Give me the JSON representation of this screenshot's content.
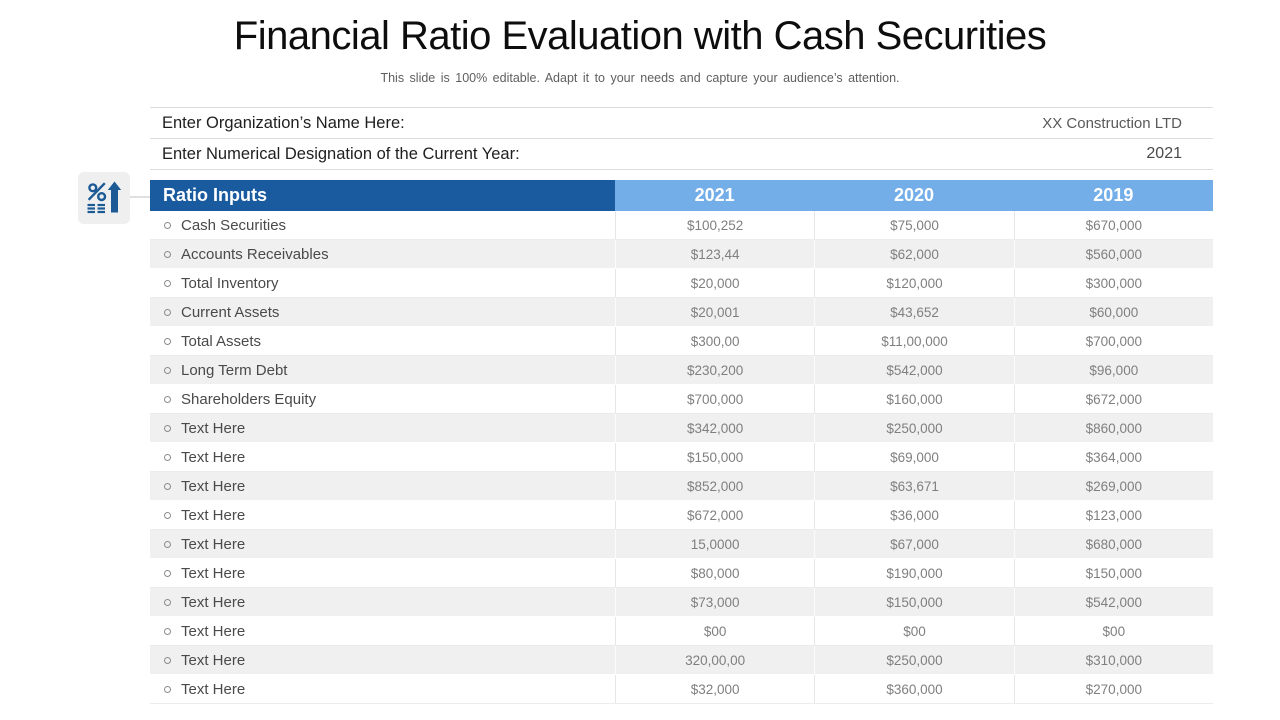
{
  "slide": {
    "title": "Financial Ratio Evaluation with Cash Securities",
    "subtitle": "This slide is 100% editable. Adapt it to your needs and capture your audience’s attention."
  },
  "info": {
    "rows": [
      {
        "label": "Enter Organization’s Name Here:",
        "value": "XX Construction LTD"
      },
      {
        "label": "Enter Numerical Designation of the Current Year:",
        "value": "2021"
      }
    ]
  },
  "table": {
    "header_label": "Ratio Inputs",
    "years": [
      "2021",
      "2020",
      "2019"
    ],
    "rows": [
      {
        "label": "Cash Securities",
        "values": [
          "$100,252",
          "$75,000",
          "$670,000"
        ]
      },
      {
        "label": "Accounts Receivables",
        "values": [
          "$123,44",
          "$62,000",
          "$560,000"
        ]
      },
      {
        "label": "Total Inventory",
        "values": [
          "$20,000",
          "$120,000",
          "$300,000"
        ]
      },
      {
        "label": "Current Assets",
        "values": [
          "$20,001",
          "$43,652",
          "$60,000"
        ]
      },
      {
        "label": "Total Assets",
        "values": [
          "$300,00",
          "$11,00,000",
          "$700,000"
        ]
      },
      {
        "label": "Long Term Debt",
        "values": [
          "$230,200",
          "$542,000",
          "$96,000"
        ]
      },
      {
        "label": "Shareholders Equity",
        "values": [
          "$700,000",
          "$160,000",
          "$672,000"
        ]
      },
      {
        "label": "Text Here",
        "values": [
          "$342,000",
          "$250,000",
          "$860,000"
        ]
      },
      {
        "label": "Text Here",
        "values": [
          "$150,000",
          "$69,000",
          "$364,000"
        ]
      },
      {
        "label": "Text Here",
        "values": [
          "$852,000",
          "$63,671",
          "$269,000"
        ]
      },
      {
        "label": "Text Here",
        "values": [
          "$672,000",
          "$36,000",
          "$123,000"
        ]
      },
      {
        "label": "Text Here",
        "values": [
          "15,0000",
          "$67,000",
          "$680,000"
        ]
      },
      {
        "label": "Text Here",
        "values": [
          "$80,000",
          "$190,000",
          "$150,000"
        ]
      },
      {
        "label": "Text Here",
        "values": [
          "$73,000",
          "$150,000",
          "$542,000"
        ]
      },
      {
        "label": "Text Here",
        "values": [
          "$00",
          "$00",
          "$00"
        ]
      },
      {
        "label": "Text Here",
        "values": [
          "320,00,00",
          "$250,000",
          "$310,000"
        ]
      },
      {
        "label": "Text Here",
        "values": [
          "$32,000",
          "$360,000",
          "$270,000"
        ]
      }
    ]
  },
  "icons": {
    "left_badge": "percent-growth-icon"
  },
  "colors": {
    "header_dark_blue": "#1a5a9e",
    "header_light_blue": "#74aee9",
    "row_alt_gray": "#f0f0f0",
    "icon_blue": "#1c5a96"
  }
}
